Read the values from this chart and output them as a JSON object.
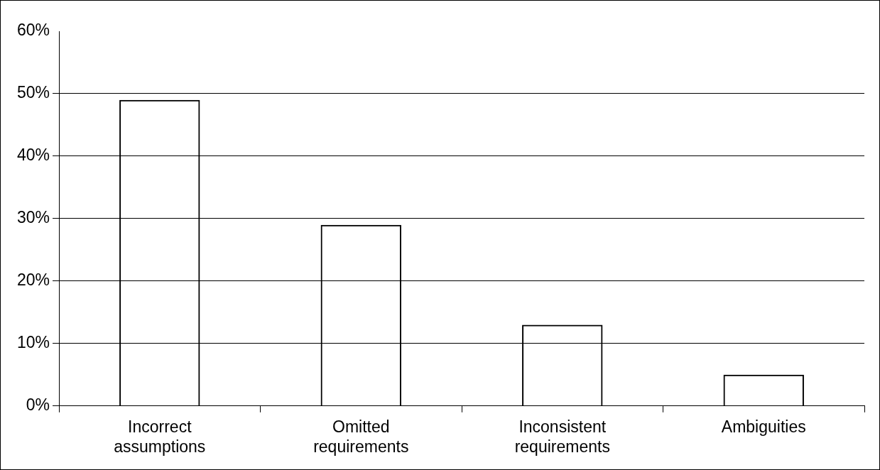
{
  "chart_data": {
    "type": "bar",
    "categories": [
      "Incorrect assumptions",
      "Omitted requirements",
      "Inconsistent requirements",
      "Ambiguities"
    ],
    "values": [
      49,
      29,
      13,
      5
    ],
    "color": "#000000",
    "ylim": [
      0,
      60
    ],
    "yticks": [
      {
        "value": 0,
        "label": "0%"
      },
      {
        "value": 10,
        "label": "10%"
      },
      {
        "value": 20,
        "label": "20%"
      },
      {
        "value": 30,
        "label": "30%"
      },
      {
        "value": 40,
        "label": "40%"
      },
      {
        "value": 50,
        "label": "50%"
      },
      {
        "value": 60,
        "label": "60%"
      }
    ],
    "grid": "y",
    "legend": false
  }
}
